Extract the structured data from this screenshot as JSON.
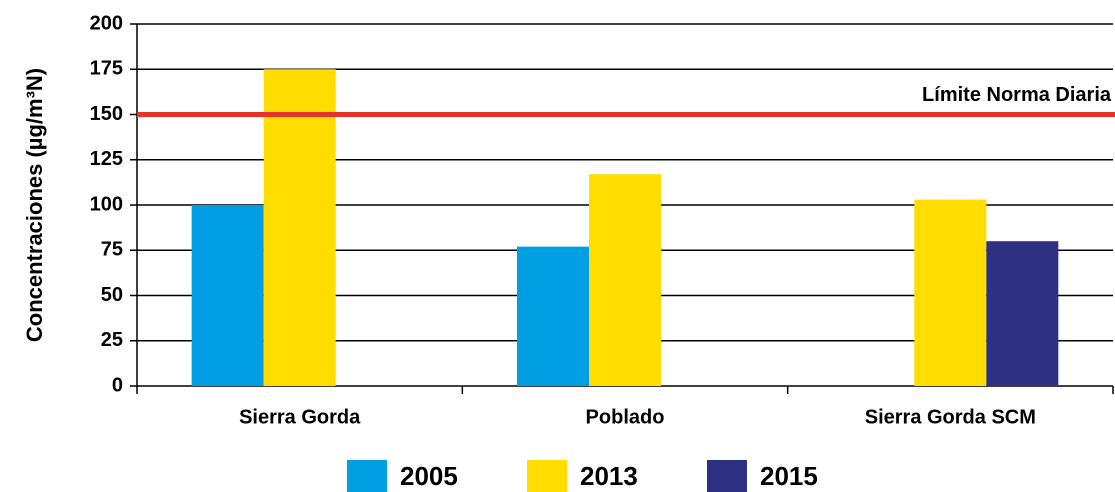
{
  "chart_data": {
    "type": "bar",
    "y_label": "Concentraciones (µg/m³N)",
    "categories": [
      "Sierra Gorda",
      "Poblado",
      "Sierra Gorda SCM"
    ],
    "series": [
      {
        "name": "2005",
        "color": "#009fe3",
        "values": [
          100,
          77,
          null
        ]
      },
      {
        "name": "2013",
        "color": "#ffdd00",
        "values": [
          175,
          117,
          103
        ]
      },
      {
        "name": "2015",
        "color": "#2e3182",
        "values": [
          null,
          null,
          80
        ]
      }
    ],
    "ylim": [
      0,
      200
    ],
    "yticks": [
      0,
      25,
      50,
      75,
      100,
      125,
      150,
      175,
      200
    ],
    "grid": true,
    "reference_line": {
      "value": 150,
      "label": "Límite Norma Diaria",
      "color": "#e5332a"
    },
    "legend": "bottom"
  }
}
